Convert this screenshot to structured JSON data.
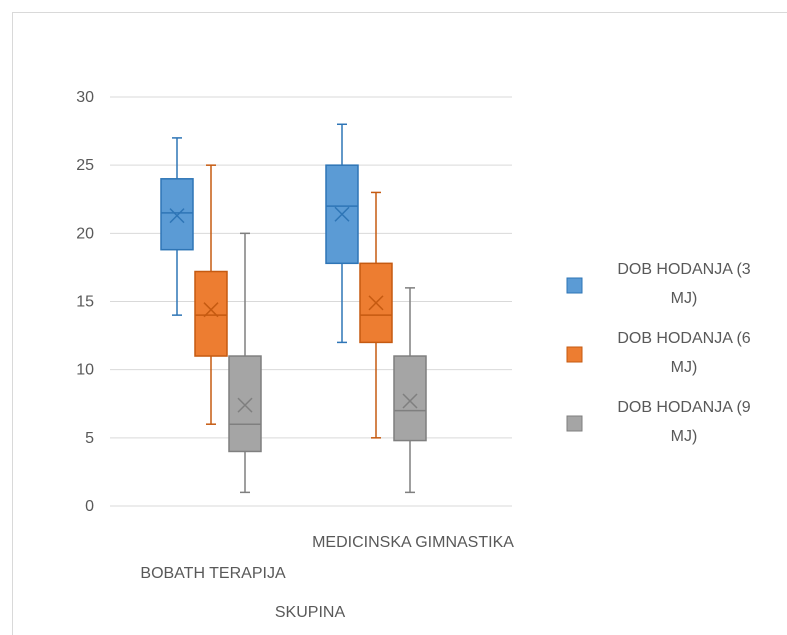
{
  "chart_data": {
    "type": "boxplot",
    "title": "",
    "xlabel": "SKUPINA",
    "ylabel": "",
    "ylim": [
      0,
      30
    ],
    "yticks": [
      0,
      5,
      10,
      15,
      20,
      25,
      30
    ],
    "grid": true,
    "legend_position": "right",
    "categories": [
      "BOBATH TERAPIJA",
      "MEDICINSKA GIMNASTIKA"
    ],
    "series": [
      {
        "name": "DOB HODANJA (3 MJ)",
        "name_lines": [
          "DOB HODANJA (3",
          "MJ)"
        ],
        "color": "#5b9bd5",
        "stroke": "#2e75b6",
        "boxes": [
          {
            "min": 14,
            "q1": 18.8,
            "median": 21.5,
            "q3": 24,
            "max": 27,
            "mean": 21.3
          },
          {
            "min": 12,
            "q1": 17.8,
            "median": 22,
            "q3": 25,
            "max": 28,
            "mean": 21.4
          }
        ]
      },
      {
        "name": "DOB HODANJA (6 MJ)",
        "name_lines": [
          "DOB HODANJA (6",
          "MJ)"
        ],
        "color": "#ed7d31",
        "stroke": "#c55a11",
        "boxes": [
          {
            "min": 6,
            "q1": 11,
            "median": 14,
            "q3": 17.2,
            "max": 25,
            "mean": 14.4
          },
          {
            "min": 5,
            "q1": 12,
            "median": 14,
            "q3": 17.8,
            "max": 23,
            "mean": 14.9
          }
        ]
      },
      {
        "name": "DOB HODANJA (9 MJ)",
        "name_lines": [
          "DOB HODANJA (9",
          "MJ)"
        ],
        "color": "#a5a5a5",
        "stroke": "#7f7f7f",
        "boxes": [
          {
            "min": 1,
            "q1": 4,
            "median": 6,
            "q3": 11,
            "max": 20,
            "mean": 7.4
          },
          {
            "min": 1,
            "q1": 4.8,
            "median": 7,
            "q3": 11,
            "max": 16,
            "mean": 7.7
          }
        ]
      }
    ]
  }
}
